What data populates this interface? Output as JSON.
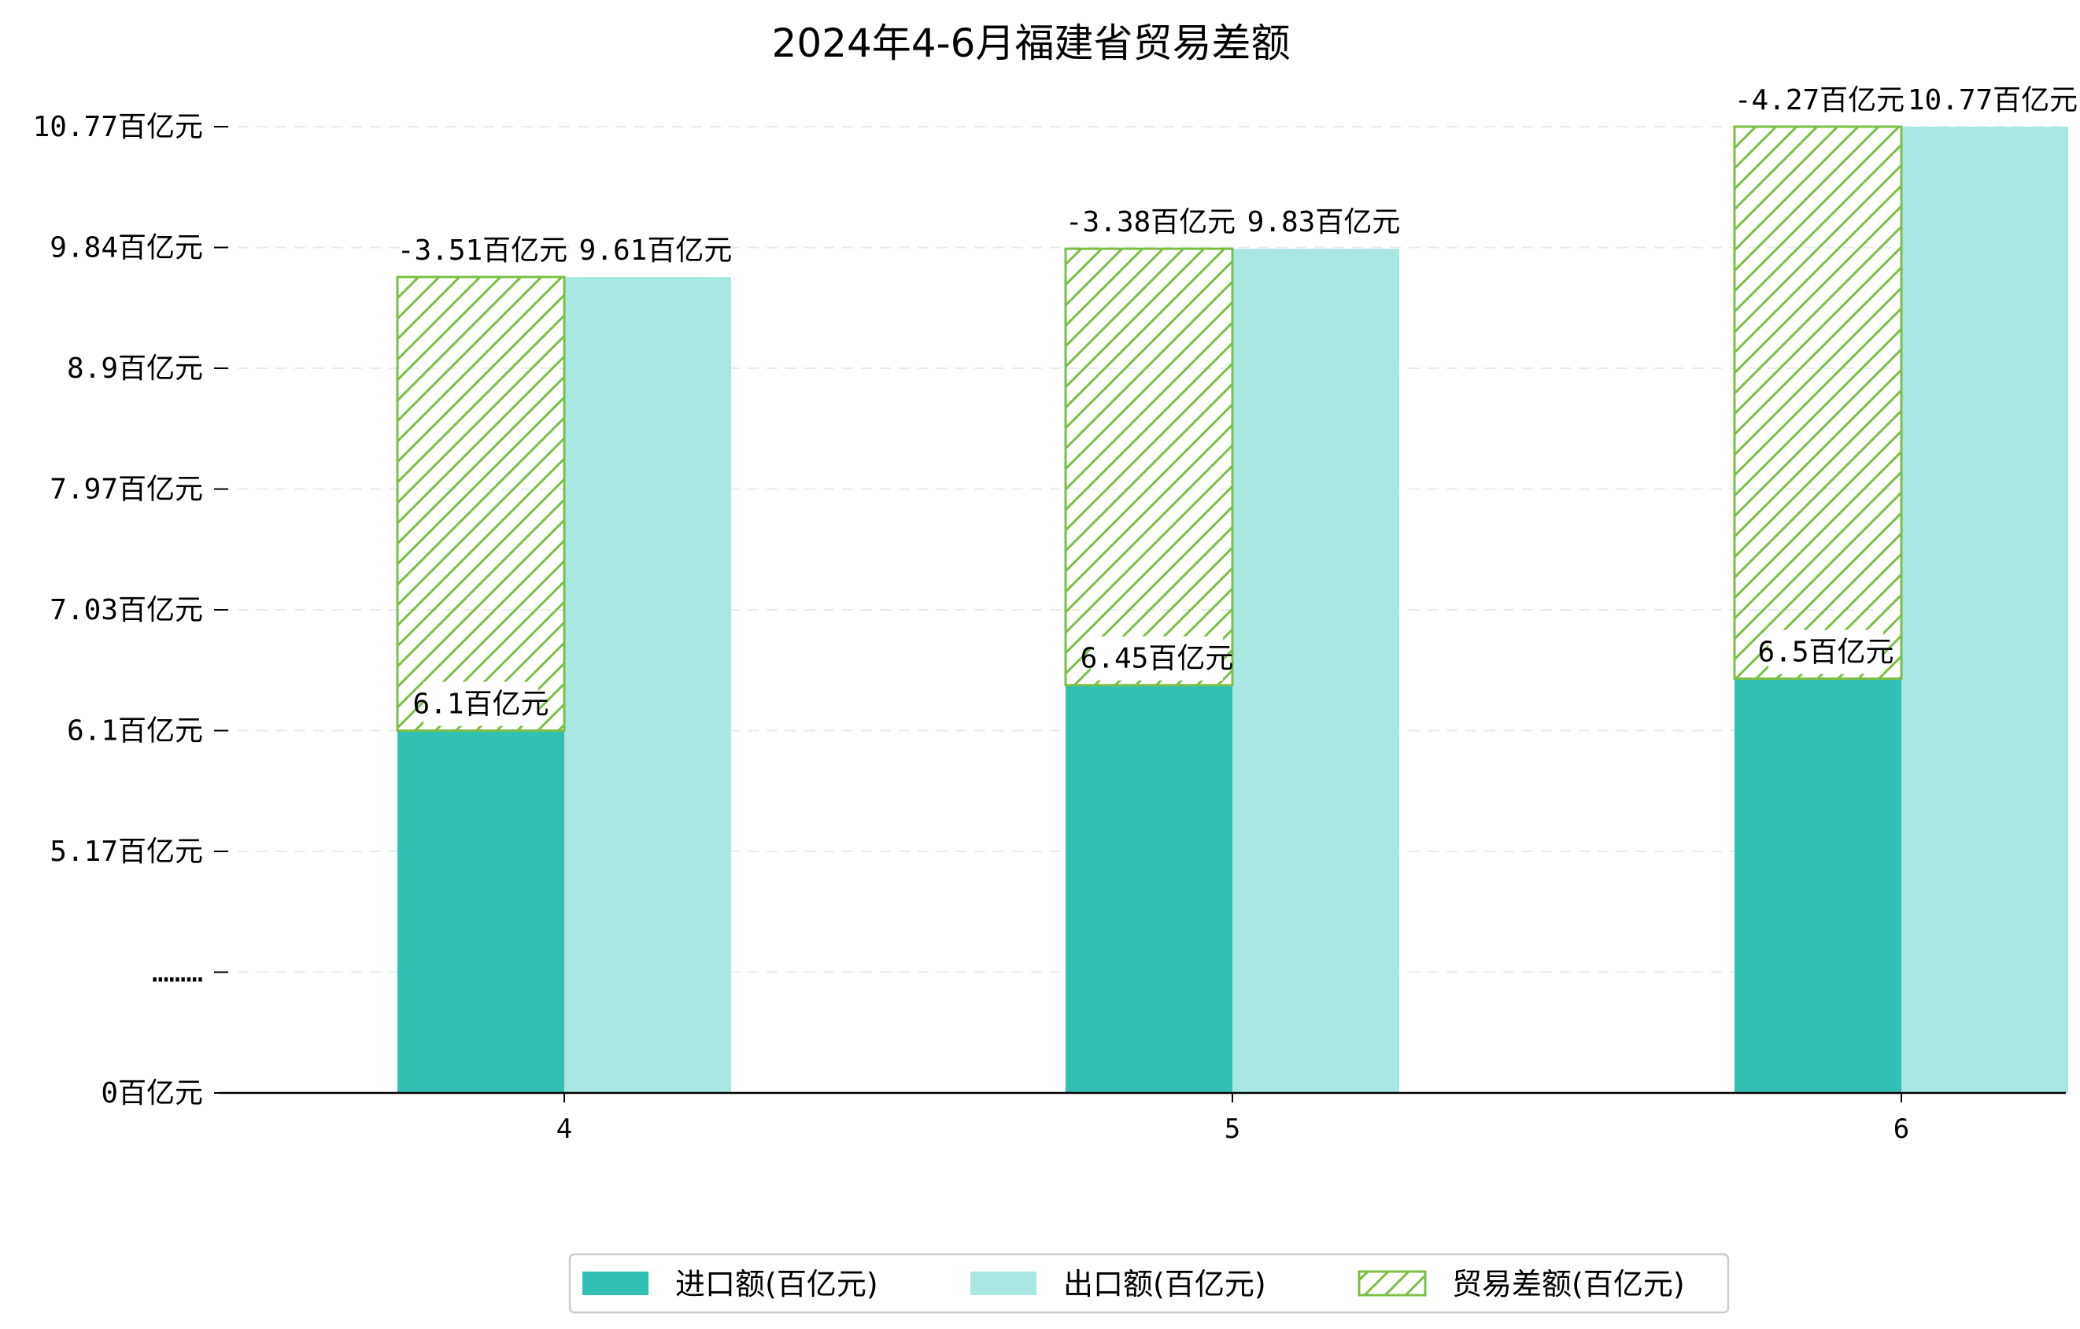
{
  "chart_data": {
    "type": "bar",
    "title": "2024年4-6月福建省贸易差额",
    "categories": [
      "4",
      "5",
      "6"
    ],
    "series": [
      {
        "name": "进口额(百亿元)",
        "values": [
          6.1,
          6.45,
          6.5
        ],
        "color": "#31c0b3"
      },
      {
        "name": "出口额(百亿元)",
        "values": [
          9.61,
          9.83,
          10.77
        ],
        "color": "#a9e7e2"
      },
      {
        "name": "贸易差额(百亿元)",
        "values": [
          -3.51,
          -3.38,
          -4.27
        ],
        "color": "#7bbf45",
        "pattern": "hatch"
      }
    ],
    "data_labels": {
      "import": [
        "6.1百亿元",
        "6.45百亿元",
        "6.5百亿元"
      ],
      "export": [
        "9.61百亿元",
        "9.83百亿元",
        "10.77百亿元"
      ],
      "balance": [
        "-3.51百亿元",
        "-3.38百亿元",
        "-4.27百亿元"
      ]
    },
    "y_ticks": [
      {
        "value": 0,
        "label": "0百亿元"
      },
      {
        "value": 4.23,
        "label": "………"
      },
      {
        "value": 5.17,
        "label": "5.17百亿元"
      },
      {
        "value": 6.1,
        "label": "6.1百亿元"
      },
      {
        "value": 7.03,
        "label": "7.03百亿元"
      },
      {
        "value": 7.97,
        "label": "7.97百亿元"
      },
      {
        "value": 8.9,
        "label": "8.9百亿元"
      },
      {
        "value": 9.84,
        "label": "9.84百亿元"
      },
      {
        "value": 10.77,
        "label": "10.77百亿元"
      }
    ],
    "ylim": [
      0,
      10.77
    ],
    "axis_break": true,
    "grid": true,
    "legend_position": "bottom-center"
  }
}
